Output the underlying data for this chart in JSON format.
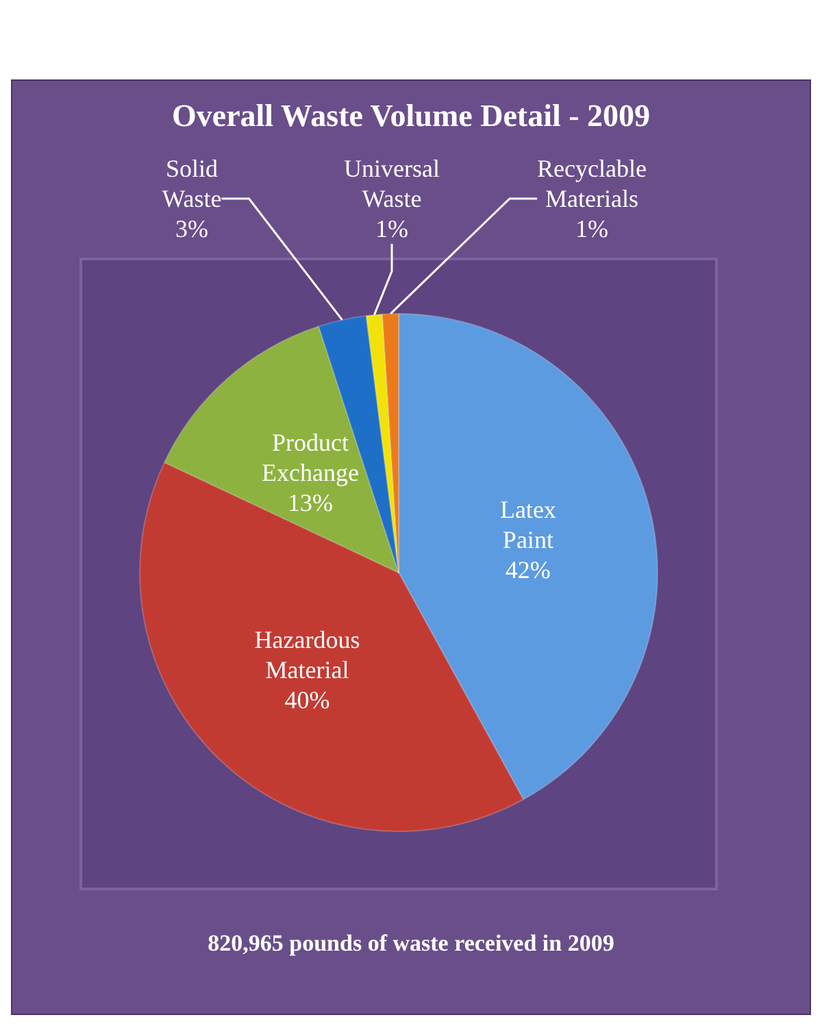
{
  "chart_data": {
    "type": "pie",
    "title": "Overall Waste Volume Detail - 2009",
    "categories": [
      "Latex Paint",
      "Hazardous Material",
      "Product Exchange",
      "Solid Waste",
      "Universal Waste",
      "Recyclable Materials"
    ],
    "values": [
      42,
      40,
      13,
      3,
      1,
      1
    ],
    "colors": [
      "#5d9be0",
      "#c23b33",
      "#8db23f",
      "#1e6fc8",
      "#f2e20a",
      "#ec7a1c"
    ],
    "value_labels": [
      "42%",
      "40%",
      "13%",
      "3%",
      "1%",
      "1%"
    ],
    "legend": false,
    "annotations": [
      "820,965 pounds of waste received in 2009"
    ]
  }
}
